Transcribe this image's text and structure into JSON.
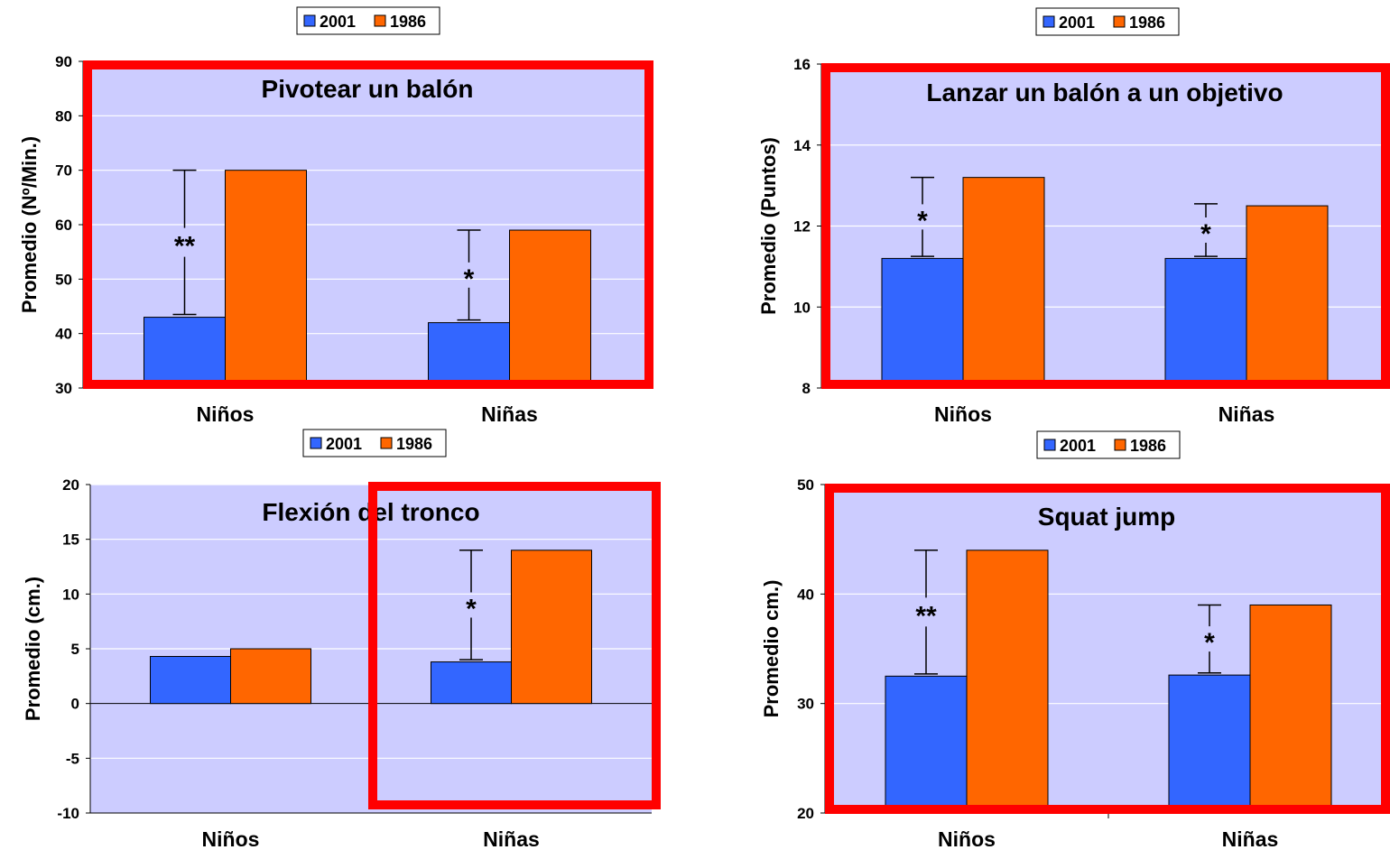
{
  "colors": {
    "plot_bg": "#ccccff",
    "series_2001": "#3366ff",
    "series_1986": "#ff6600",
    "highlight_box": "#ff0000",
    "gridline": "#ffffff"
  },
  "chart_data": [
    {
      "type": "bar",
      "title": "Pivotear un balón",
      "ylabel": "Promedio (Nº/Min.)",
      "xlabel": "",
      "categories": [
        "Niños",
        "Niñas"
      ],
      "ylim": [
        30,
        90
      ],
      "yticks": [
        30,
        40,
        50,
        60,
        70,
        80,
        90
      ],
      "series": [
        {
          "name": "2001",
          "values": [
            43,
            42
          ]
        },
        {
          "name": "1986",
          "values": [
            70,
            59
          ]
        }
      ],
      "error_bars_2001": [
        [
          43.5,
          70
        ],
        [
          42.5,
          59
        ]
      ],
      "significance": [
        "**",
        "*"
      ],
      "highlight": "plot",
      "legend": "top"
    },
    {
      "type": "bar",
      "title": "Lanzar un balón a un objetivo",
      "ylabel": "Promedio (Puntos)",
      "xlabel": "",
      "categories": [
        "Niños",
        "Niñas"
      ],
      "ylim": [
        8,
        16
      ],
      "yticks": [
        8,
        10,
        12,
        14,
        16
      ],
      "series": [
        {
          "name": "2001",
          "values": [
            11.2,
            11.2
          ]
        },
        {
          "name": "1986",
          "values": [
            13.2,
            12.5
          ]
        }
      ],
      "error_bars_2001": [
        [
          11.25,
          13.2
        ],
        [
          11.25,
          12.55
        ]
      ],
      "significance": [
        "*",
        "*"
      ],
      "highlight": "plot",
      "legend": "top"
    },
    {
      "type": "bar",
      "title": "Flexión del tronco",
      "ylabel": "Promedio (cm.)",
      "xlabel": "",
      "categories": [
        "Niños",
        "Niñas"
      ],
      "ylim": [
        -10,
        20
      ],
      "yticks": [
        -10,
        -5,
        0,
        5,
        10,
        15,
        20
      ],
      "series": [
        {
          "name": "2001",
          "values": [
            4.3,
            3.8
          ]
        },
        {
          "name": "1986",
          "values": [
            5.0,
            14.0
          ]
        }
      ],
      "error_bars_2001": [
        null,
        [
          4.0,
          14.0
        ]
      ],
      "significance": [
        "",
        "*"
      ],
      "highlight": "second-category",
      "legend": "top"
    },
    {
      "type": "bar",
      "title": "Squat jump",
      "ylabel": "Promedio cm.)",
      "xlabel": "",
      "categories": [
        "Niños",
        "Niñas"
      ],
      "ylim": [
        20,
        50
      ],
      "yticks": [
        20,
        30,
        40,
        50
      ],
      "series": [
        {
          "name": "2001",
          "values": [
            32.5,
            32.6
          ]
        },
        {
          "name": "1986",
          "values": [
            44.0,
            39.0
          ]
        }
      ],
      "error_bars_2001": [
        [
          32.7,
          44.0
        ],
        [
          32.8,
          39.0
        ]
      ],
      "significance": [
        "**",
        "*"
      ],
      "highlight": "plot",
      "legend": "top"
    }
  ]
}
